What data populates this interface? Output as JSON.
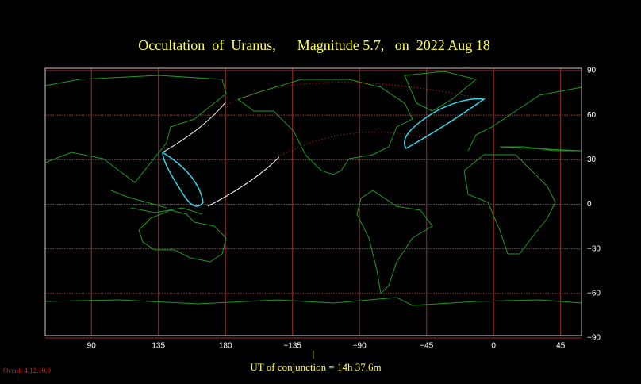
{
  "title": "Occultation  of  Uranus,      Magnitude 5.7,   on  2022 Aug 18",
  "map": {
    "xlim": [
      59,
      419
    ],
    "ylim": [
      -90,
      90
    ],
    "xticks": [
      90,
      135,
      180,
      {
        "value": 225,
        "label": "−135"
      },
      {
        "value": 270,
        "label": "−90"
      },
      {
        "value": 315,
        "label": "−45"
      },
      {
        "value": 360,
        "label": "0"
      },
      {
        "value": 405,
        "label": "45"
      }
    ],
    "yticks": [
      90,
      60,
      30,
      0,
      {
        "value": -30,
        "label": "−30"
      },
      {
        "value": -60,
        "label": "−60"
      },
      {
        "value": -90,
        "label": "−90"
      }
    ]
  },
  "footer": {
    "marker": "|",
    "text": "UT of conjunction = 14h 37.6m"
  },
  "version": "Occult 4.12.10.0"
}
